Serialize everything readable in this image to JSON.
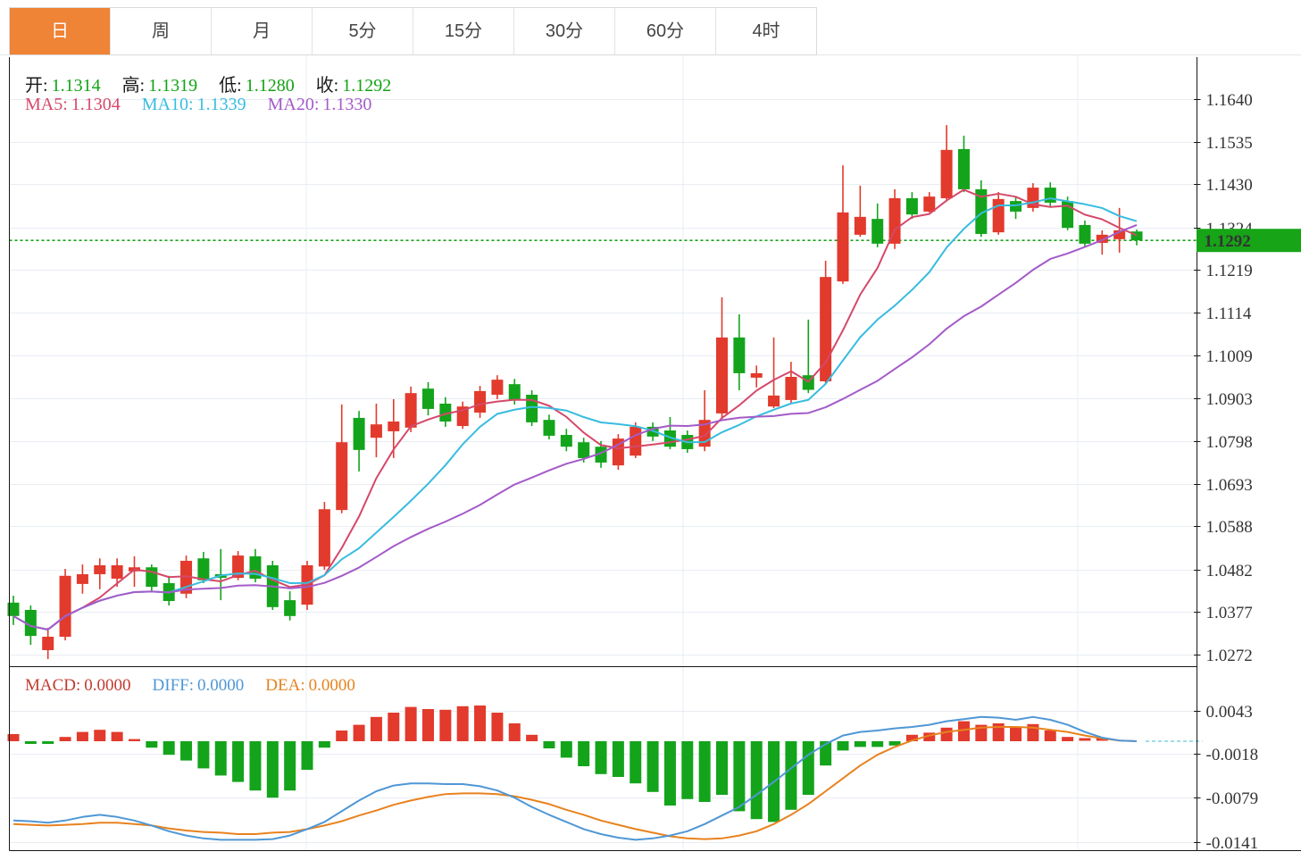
{
  "tabs": {
    "active_index": 0,
    "items": [
      "日",
      "周",
      "月",
      "5分",
      "15分",
      "30分",
      "60分",
      "4时"
    ]
  },
  "legends": {
    "ohlc": {
      "open_label": "开:",
      "open_value": "1.1314",
      "high_label": "高:",
      "high_value": "1.1319",
      "low_label": "低:",
      "low_value": "1.1280",
      "close_label": "收:",
      "close_value": "1.1292"
    },
    "ma": {
      "ma5_label": "MA5:",
      "ma5_value": "1.1304",
      "ma10_label": "MA10:",
      "ma10_value": "1.1339",
      "ma20_label": "MA20:",
      "ma20_value": "1.1330"
    },
    "macd": {
      "macd_label": "MACD:",
      "macd_value": "0.0000",
      "diff_label": "DIFF:",
      "diff_value": "0.0000",
      "dea_label": "DEA:",
      "dea_value": "0.0000"
    }
  },
  "price_label": {
    "value": "1.1292"
  },
  "colors": {
    "up": "#e23a2c",
    "down": "#13a41b",
    "tab_active": "#ef8336",
    "price_line": "#18a018",
    "price_label_bg": "#17a417",
    "ma5": "#d5486a",
    "ma10": "#38bcdf",
    "ma20": "#a45bc8",
    "value_green": "#12a315",
    "macd_text": "#c23b2f",
    "diff_line": "#4f97d5",
    "dea_line": "#e8821e",
    "grid": "#e8edf3",
    "axis": "#161616",
    "zero_dash": "#7ed0e0"
  },
  "chart_data": [
    {
      "type": "candlestick",
      "title": "",
      "ylabel": "price",
      "y_ticks": [
        1.164,
        1.1535,
        1.143,
        1.1324,
        1.1219,
        1.1114,
        1.1009,
        1.0903,
        1.0798,
        1.0693,
        1.0588,
        1.0482,
        1.0377,
        1.0272
      ],
      "ylim": [
        1.0225,
        1.1745
      ],
      "current_price": 1.1292,
      "last_bar": {
        "open": 1.1314,
        "high": 1.1319,
        "low": 1.128,
        "close": 1.1292
      },
      "ma_periods": [
        5,
        10,
        20
      ],
      "ma_last": {
        "ma5": 1.1304,
        "ma10": 1.1339,
        "ma20": 1.133
      },
      "candles_ohlc": [
        [
          1.04,
          1.0417,
          1.0345,
          1.0367
        ],
        [
          1.0382,
          1.0393,
          1.0296,
          1.0318
        ],
        [
          1.0283,
          1.0338,
          1.0261,
          1.0316
        ],
        [
          1.0316,
          1.0483,
          1.0307,
          1.0466
        ],
        [
          1.0446,
          1.0494,
          1.0422,
          1.047
        ],
        [
          1.047,
          1.0509,
          1.0433,
          1.0492
        ],
        [
          1.0459,
          1.0509,
          1.0439,
          1.0492
        ],
        [
          1.0477,
          1.0514,
          1.0439,
          1.0487
        ],
        [
          1.0487,
          1.0494,
          1.0428,
          1.0439
        ],
        [
          1.0448,
          1.0466,
          1.0393,
          1.0404
        ],
        [
          1.0422,
          1.0516,
          1.0411,
          1.0503
        ],
        [
          1.0509,
          1.0525,
          1.0448,
          1.0455
        ],
        [
          1.047,
          1.0532,
          1.0406,
          1.0461
        ],
        [
          1.0461,
          1.0527,
          1.0455,
          1.0516
        ],
        [
          1.0514,
          1.0532,
          1.045,
          1.0459
        ],
        [
          1.0492,
          1.0503,
          1.0382,
          1.0389
        ],
        [
          1.0406,
          1.0428,
          1.0356,
          1.0367
        ],
        [
          1.0395,
          1.0503,
          1.0382,
          1.0492
        ],
        [
          1.0489,
          1.0648,
          1.0481,
          1.063
        ],
        [
          1.0628,
          1.0888,
          1.062,
          1.0795
        ],
        [
          1.0855,
          1.0872,
          1.0723,
          1.0776
        ],
        [
          1.0806,
          1.089,
          1.0758,
          1.0839
        ],
        [
          1.0822,
          1.0901,
          1.0756,
          1.0846
        ],
        [
          1.0831,
          1.0932,
          1.082,
          1.0916
        ],
        [
          1.0927,
          1.0943,
          1.0861,
          1.0877
        ],
        [
          1.089,
          1.0906,
          1.0833,
          1.0846
        ],
        [
          1.0835,
          1.0895,
          1.0828,
          1.0883
        ],
        [
          1.0868,
          1.0934,
          1.0855,
          1.0921
        ],
        [
          1.0912,
          1.096,
          1.0901,
          1.0949
        ],
        [
          1.0938,
          1.0951,
          1.0888,
          1.0899
        ],
        [
          1.0912,
          1.0923,
          1.0835,
          1.0844
        ],
        [
          1.085,
          1.0863,
          1.0802,
          1.0811
        ],
        [
          1.0813,
          1.0828,
          1.0773,
          1.0784
        ],
        [
          1.0795,
          1.0806,
          1.0745,
          1.0756
        ],
        [
          1.0784,
          1.0798,
          1.0732,
          1.0745
        ],
        [
          1.0738,
          1.0815,
          1.0727,
          1.0804
        ],
        [
          1.0762,
          1.0844,
          1.0756,
          1.0833
        ],
        [
          1.0833,
          1.0844,
          1.0798,
          1.0809
        ],
        [
          1.0824,
          1.0857,
          1.0778,
          1.0784
        ],
        [
          1.0813,
          1.0824,
          1.0769,
          1.0778
        ],
        [
          1.0784,
          1.0923,
          1.0773,
          1.085
        ],
        [
          1.0866,
          1.1152,
          1.0855,
          1.1053
        ],
        [
          1.1053,
          1.111,
          1.0923,
          1.0965
        ],
        [
          1.0954,
          1.0984,
          1.093,
          1.0965
        ],
        [
          1.0883,
          1.1053,
          1.0879,
          1.091
        ],
        [
          1.0899,
          1.0993,
          1.089,
          1.0956
        ],
        [
          1.096,
          1.1097,
          1.0916,
          1.0924
        ],
        [
          1.0945,
          1.1242,
          1.0938,
          1.1202
        ],
        [
          1.1191,
          1.1477,
          1.1185,
          1.1361
        ],
        [
          1.1306,
          1.1427,
          1.1301,
          1.135
        ],
        [
          1.1345,
          1.1383,
          1.1275,
          1.1284
        ],
        [
          1.1284,
          1.1418,
          1.1271,
          1.1396
        ],
        [
          1.1396,
          1.1411,
          1.1345,
          1.1356
        ],
        [
          1.1363,
          1.1411,
          1.1361,
          1.14
        ],
        [
          1.1396,
          1.1576,
          1.1389,
          1.1515
        ],
        [
          1.1517,
          1.155,
          1.1411,
          1.1418
        ],
        [
          1.1418,
          1.144,
          1.1301,
          1.1308
        ],
        [
          1.1312,
          1.1411,
          1.1306,
          1.1394
        ],
        [
          1.1389,
          1.14,
          1.1345,
          1.1363
        ],
        [
          1.1372,
          1.1433,
          1.1363,
          1.1422
        ],
        [
          1.1422,
          1.1435,
          1.1374,
          1.1385
        ],
        [
          1.1389,
          1.14,
          1.1317,
          1.1323
        ],
        [
          1.133,
          1.1341,
          1.1275,
          1.1284
        ],
        [
          1.1286,
          1.1317,
          1.1257,
          1.1306
        ],
        [
          1.1295,
          1.1372,
          1.1262,
          1.1317
        ],
        [
          1.1314,
          1.1319,
          1.128,
          1.1292
        ]
      ]
    },
    {
      "type": "bar",
      "title": "MACD",
      "y_ticks": [
        0.0043,
        -0.0018,
        -0.0079,
        -0.0141
      ],
      "last_values": {
        "macd": 0.0,
        "diff": 0.0,
        "dea": 0.0
      },
      "histogram": [
        0.001,
        -0.0001,
        -0.0002,
        0.0006,
        0.0013,
        0.0016,
        0.0013,
        0.0003,
        -0.0009,
        -0.0019,
        -0.0027,
        -0.0038,
        -0.0048,
        -0.0057,
        -0.0069,
        -0.0079,
        -0.0069,
        -0.004,
        -0.0009,
        0.0015,
        0.0023,
        0.0034,
        0.004,
        0.0048,
        0.0045,
        0.0044,
        0.0049,
        0.005,
        0.004,
        0.0025,
        0.0009,
        -0.001,
        -0.0023,
        -0.0035,
        -0.0046,
        -0.005,
        -0.0059,
        -0.0071,
        -0.009,
        -0.0081,
        -0.0085,
        -0.0075,
        -0.0098,
        -0.0109,
        -0.0113,
        -0.0096,
        -0.0075,
        -0.0034,
        -0.0013,
        -0.0008,
        -0.0008,
        -0.0006,
        0.0009,
        0.0012,
        0.0019,
        0.0028,
        0.0023,
        0.0025,
        0.0019,
        0.0024,
        0.0015,
        0.0006,
        0.0002,
        0.0001,
        0.0,
        0.0
      ],
      "diff": [
        -0.0111,
        -0.0112,
        -0.0114,
        -0.0111,
        -0.0106,
        -0.0103,
        -0.0106,
        -0.0111,
        -0.0118,
        -0.0126,
        -0.0132,
        -0.0136,
        -0.0138,
        -0.0138,
        -0.0138,
        -0.0137,
        -0.0132,
        -0.0123,
        -0.0113,
        -0.0098,
        -0.0083,
        -0.007,
        -0.0062,
        -0.0059,
        -0.0059,
        -0.006,
        -0.006,
        -0.0063,
        -0.0069,
        -0.0079,
        -0.0092,
        -0.0103,
        -0.0113,
        -0.0123,
        -0.013,
        -0.0135,
        -0.0138,
        -0.0136,
        -0.0132,
        -0.0126,
        -0.0116,
        -0.0104,
        -0.0092,
        -0.0075,
        -0.0057,
        -0.0038,
        -0.0019,
        -0.0004,
        0.0008,
        0.0013,
        0.0015,
        0.0018,
        0.002,
        0.0023,
        0.0028,
        0.0031,
        0.0034,
        0.0033,
        0.003,
        0.0034,
        0.003,
        0.0023,
        0.0013,
        0.0005,
        0.0001,
        0.0
      ],
      "dea": [
        -0.0116,
        -0.0117,
        -0.0118,
        -0.0117,
        -0.0116,
        -0.0114,
        -0.0114,
        -0.0116,
        -0.0118,
        -0.0122,
        -0.0125,
        -0.0127,
        -0.0128,
        -0.013,
        -0.013,
        -0.0128,
        -0.0127,
        -0.0123,
        -0.0118,
        -0.0112,
        -0.0104,
        -0.0097,
        -0.0089,
        -0.0083,
        -0.0078,
        -0.0074,
        -0.0073,
        -0.0073,
        -0.0074,
        -0.0077,
        -0.0082,
        -0.0088,
        -0.0096,
        -0.0103,
        -0.0111,
        -0.0117,
        -0.0123,
        -0.0128,
        -0.0133,
        -0.0136,
        -0.0137,
        -0.0136,
        -0.0132,
        -0.0126,
        -0.0116,
        -0.0103,
        -0.0088,
        -0.007,
        -0.0052,
        -0.0034,
        -0.0019,
        -0.0008,
        0.0001,
        0.0008,
        0.0013,
        0.0016,
        0.0019,
        0.002,
        0.002,
        0.0019,
        0.0016,
        0.0013,
        0.0008,
        0.0004,
        0.0001,
        0.0
      ]
    }
  ]
}
